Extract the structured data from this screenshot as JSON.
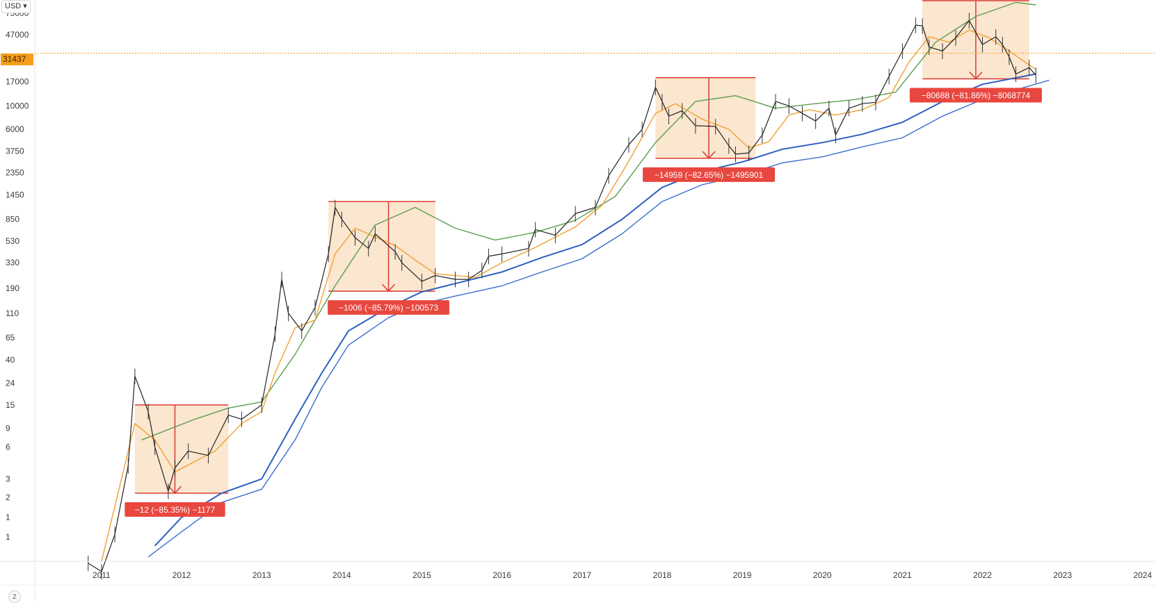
{
  "toolbar": {
    "currency_label": "USD",
    "currency_icon": "chevron-down-icon",
    "zoom_label": "Z"
  },
  "current_price": {
    "label": "31437",
    "value": 31437,
    "color": "#f59d1a"
  },
  "chart_data": {
    "type": "line",
    "title": "",
    "xlabel": "",
    "ylabel": "",
    "y_scale": "log",
    "ylim": [
      0.5,
      100000
    ],
    "xlim": [
      "2010-03",
      "2024-03"
    ],
    "grid": false,
    "y_ticks": [
      {
        "value": 75000,
        "label": "75000"
      },
      {
        "value": 47000,
        "label": "47000"
      },
      {
        "value": 17000,
        "label": "17000"
      },
      {
        "value": 10000,
        "label": "10000"
      },
      {
        "value": 6000,
        "label": "6000"
      },
      {
        "value": 3750,
        "label": "3750"
      },
      {
        "value": 2350,
        "label": "2350"
      },
      {
        "value": 1450,
        "label": "1450"
      },
      {
        "value": 850,
        "label": "850"
      },
      {
        "value": 530,
        "label": "530"
      },
      {
        "value": 330,
        "label": "330"
      },
      {
        "value": 190,
        "label": "190"
      },
      {
        "value": 110,
        "label": "110"
      },
      {
        "value": 65,
        "label": "65"
      },
      {
        "value": 40,
        "label": "40"
      },
      {
        "value": 24,
        "label": "24"
      },
      {
        "value": 15,
        "label": "15"
      },
      {
        "value": 9,
        "label": "9"
      },
      {
        "value": 6,
        "label": "6"
      },
      {
        "value": 3,
        "label": "3"
      },
      {
        "value": 2,
        "label": "2"
      },
      {
        "value": 1.3,
        "label": "1"
      },
      {
        "value": 0.85,
        "label": "1"
      }
    ],
    "x_ticks": [
      {
        "value": "2011-01",
        "label": "2011"
      },
      {
        "value": "2012-01",
        "label": "2012"
      },
      {
        "value": "2013-01",
        "label": "2013"
      },
      {
        "value": "2014-01",
        "label": "2014"
      },
      {
        "value": "2015-01",
        "label": "2015"
      },
      {
        "value": "2016-01",
        "label": "2016"
      },
      {
        "value": "2017-01",
        "label": "2017"
      },
      {
        "value": "2018-01",
        "label": "2018"
      },
      {
        "value": "2019-01",
        "label": "2019"
      },
      {
        "value": "2020-01",
        "label": "2020"
      },
      {
        "value": "2021-01",
        "label": "2021"
      },
      {
        "value": "2022-01",
        "label": "2022"
      },
      {
        "value": "2023-01",
        "label": "2023"
      },
      {
        "value": "2024-01",
        "label": "2024"
      }
    ],
    "series": [
      {
        "kind": "price",
        "color": "#222222",
        "points": [
          [
            "2010-11",
            0.48
          ],
          [
            "2011-01",
            0.4
          ],
          [
            "2011-03",
            0.9
          ],
          [
            "2011-05",
            4
          ],
          [
            "2011-06",
            28
          ],
          [
            "2011-08",
            13
          ],
          [
            "2011-09",
            6
          ],
          [
            "2011-11",
            2.3
          ],
          [
            "2011-12",
            3.8
          ],
          [
            "2012-02",
            5.5
          ],
          [
            "2012-05",
            5
          ],
          [
            "2012-08",
            12
          ],
          [
            "2012-10",
            11
          ],
          [
            "2013-01",
            15
          ],
          [
            "2013-03",
            70
          ],
          [
            "2013-04",
            230
          ],
          [
            "2013-05",
            110
          ],
          [
            "2013-07",
            75
          ],
          [
            "2013-09",
            125
          ],
          [
            "2013-11",
            400
          ],
          [
            "2013-12",
            1100
          ],
          [
            "2014-01",
            850
          ],
          [
            "2014-03",
            570
          ],
          [
            "2014-05",
            450
          ],
          [
            "2014-06",
            620
          ],
          [
            "2014-09",
            420
          ],
          [
            "2014-10",
            330
          ],
          [
            "2015-01",
            220
          ],
          [
            "2015-03",
            250
          ],
          [
            "2015-06",
            230
          ],
          [
            "2015-08",
            230
          ],
          [
            "2015-10",
            280
          ],
          [
            "2015-11",
            380
          ],
          [
            "2016-01",
            400
          ],
          [
            "2016-05",
            450
          ],
          [
            "2016-06",
            680
          ],
          [
            "2016-09",
            600
          ],
          [
            "2016-12",
            960
          ],
          [
            "2017-03",
            1100
          ],
          [
            "2017-05",
            2200
          ],
          [
            "2017-08",
            4300
          ],
          [
            "2017-10",
            6000
          ],
          [
            "2017-12",
            15000
          ],
          [
            "2018-01",
            11000
          ],
          [
            "2018-02",
            8000
          ],
          [
            "2018-04",
            9000
          ],
          [
            "2018-06",
            6500
          ],
          [
            "2018-09",
            6400
          ],
          [
            "2018-11",
            4200
          ],
          [
            "2018-12",
            3500
          ],
          [
            "2019-02",
            3600
          ],
          [
            "2019-04",
            5300
          ],
          [
            "2019-06",
            11000
          ],
          [
            "2019-08",
            10000
          ],
          [
            "2019-10",
            8500
          ],
          [
            "2019-12",
            7200
          ],
          [
            "2020-02",
            9500
          ],
          [
            "2020-03",
            5300
          ],
          [
            "2020-05",
            9500
          ],
          [
            "2020-07",
            10500
          ],
          [
            "2020-09",
            10800
          ],
          [
            "2020-11",
            19000
          ],
          [
            "2021-01",
            33000
          ],
          [
            "2021-03",
            58000
          ],
          [
            "2021-04",
            57000
          ],
          [
            "2021-05",
            36000
          ],
          [
            "2021-07",
            33000
          ],
          [
            "2021-09",
            44000
          ],
          [
            "2021-11",
            64000
          ],
          [
            "2022-01",
            38000
          ],
          [
            "2022-03",
            45000
          ],
          [
            "2022-04",
            38000
          ],
          [
            "2022-05",
            29000
          ],
          [
            "2022-06",
            20000
          ],
          [
            "2022-08",
            23000
          ],
          [
            "2022-09",
            19500
          ]
        ]
      },
      {
        "kind": "short_ma",
        "color": "#f0a030",
        "points": [
          [
            "2011-01",
            0.5
          ],
          [
            "2011-06",
            10
          ],
          [
            "2011-09",
            7
          ],
          [
            "2011-12",
            3.5
          ],
          [
            "2012-06",
            5.5
          ],
          [
            "2012-10",
            10
          ],
          [
            "2013-01",
            13
          ],
          [
            "2013-03",
            30
          ],
          [
            "2013-06",
            80
          ],
          [
            "2013-09",
            95
          ],
          [
            "2013-12",
            400
          ],
          [
            "2014-03",
            700
          ],
          [
            "2014-06",
            580
          ],
          [
            "2014-09",
            480
          ],
          [
            "2014-12",
            350
          ],
          [
            "2015-03",
            260
          ],
          [
            "2015-09",
            240
          ],
          [
            "2016-01",
            330
          ],
          [
            "2016-06",
            460
          ],
          [
            "2016-12",
            720
          ],
          [
            "2017-04",
            1150
          ],
          [
            "2017-08",
            3000
          ],
          [
            "2017-12",
            8500
          ],
          [
            "2018-03",
            10500
          ],
          [
            "2018-07",
            7500
          ],
          [
            "2018-11",
            6000
          ],
          [
            "2019-02",
            4000
          ],
          [
            "2019-05",
            4600
          ],
          [
            "2019-08",
            8200
          ],
          [
            "2019-11",
            9200
          ],
          [
            "2020-03",
            8200
          ],
          [
            "2020-07",
            9200
          ],
          [
            "2020-11",
            12000
          ],
          [
            "2021-02",
            26000
          ],
          [
            "2021-05",
            45000
          ],
          [
            "2021-08",
            40000
          ],
          [
            "2021-11",
            52000
          ],
          [
            "2022-02",
            44000
          ],
          [
            "2022-05",
            33000
          ],
          [
            "2022-09",
            22000
          ]
        ]
      },
      {
        "kind": "long_ma",
        "color": "#5a9e4f",
        "points": [
          [
            "2011-07",
            7
          ],
          [
            "2012-03",
            11
          ],
          [
            "2012-08",
            14
          ],
          [
            "2013-01",
            16
          ],
          [
            "2013-06",
            45
          ],
          [
            "2013-12",
            200
          ],
          [
            "2014-06",
            750
          ],
          [
            "2014-12",
            1100
          ],
          [
            "2015-06",
            700
          ],
          [
            "2015-12",
            540
          ],
          [
            "2016-06",
            640
          ],
          [
            "2016-12",
            830
          ],
          [
            "2017-06",
            1400
          ],
          [
            "2017-12",
            4500
          ],
          [
            "2018-06",
            11000
          ],
          [
            "2018-12",
            12500
          ],
          [
            "2019-06",
            9500
          ],
          [
            "2019-12",
            10500
          ],
          [
            "2020-06",
            11500
          ],
          [
            "2020-12",
            13500
          ],
          [
            "2021-06",
            40000
          ],
          [
            "2021-12",
            70000
          ],
          [
            "2022-06",
            95000
          ],
          [
            "2022-09",
            90000
          ]
        ]
      },
      {
        "kind": "support_upper",
        "color": "#2f5fbf",
        "points": [
          [
            "2011-09",
            0.7
          ],
          [
            "2012-01",
            1.3
          ],
          [
            "2012-07",
            2.2
          ],
          [
            "2013-01",
            3
          ],
          [
            "2013-06",
            11
          ],
          [
            "2013-10",
            30
          ],
          [
            "2014-02",
            75
          ],
          [
            "2014-08",
            125
          ],
          [
            "2015-01",
            175
          ],
          [
            "2015-06",
            210
          ],
          [
            "2016-01",
            270
          ],
          [
            "2016-07",
            370
          ],
          [
            "2017-01",
            490
          ],
          [
            "2017-07",
            850
          ],
          [
            "2018-01",
            1700
          ],
          [
            "2018-07",
            2400
          ],
          [
            "2019-01",
            2950
          ],
          [
            "2019-07",
            3900
          ],
          [
            "2020-01",
            4500
          ],
          [
            "2020-07",
            5400
          ],
          [
            "2021-01",
            7000
          ],
          [
            "2021-07",
            11000
          ],
          [
            "2022-01",
            16000
          ],
          [
            "2022-09",
            20000
          ]
        ]
      },
      {
        "kind": "support_lower",
        "color": "#3a6ecf",
        "points": [
          [
            "2011-08",
            0.55
          ],
          [
            "2012-01",
            0.95
          ],
          [
            "2012-07",
            1.8
          ],
          [
            "2013-01",
            2.4
          ],
          [
            "2013-06",
            7
          ],
          [
            "2013-10",
            22
          ],
          [
            "2014-02",
            55
          ],
          [
            "2014-08",
            100
          ],
          [
            "2015-01",
            135
          ],
          [
            "2015-06",
            160
          ],
          [
            "2016-01",
            200
          ],
          [
            "2016-07",
            270
          ],
          [
            "2017-01",
            360
          ],
          [
            "2017-07",
            620
          ],
          [
            "2018-01",
            1250
          ],
          [
            "2018-07",
            1800
          ],
          [
            "2019-01",
            2200
          ],
          [
            "2019-07",
            2900
          ],
          [
            "2020-01",
            3300
          ],
          [
            "2020-07",
            4100
          ],
          [
            "2021-01",
            5000
          ],
          [
            "2021-07",
            8000
          ],
          [
            "2022-01",
            11500
          ],
          [
            "2022-11",
            17500
          ]
        ]
      }
    ],
    "drawdowns": [
      {
        "start": "2011-06",
        "end": "2012-08",
        "high": 15,
        "low": 2.2,
        "arrow_x": "2011-12",
        "label": "−12 (−85.35%) −1177"
      },
      {
        "start": "2013-11",
        "end": "2015-03",
        "high": 1250,
        "low": 178,
        "arrow_x": "2014-08",
        "label": "−1006 (−85.79%) −100573"
      },
      {
        "start": "2017-12",
        "end": "2019-03",
        "high": 18500,
        "low": 3200,
        "arrow_x": "2018-08",
        "label": "−14959 (−82.65%) −1495901"
      },
      {
        "start": "2021-04",
        "end": "2022-08",
        "high": 98500,
        "low": 18000,
        "arrow_x": "2021-12",
        "label": "−80688 (−81.86%) −8068774"
      }
    ],
    "drawdown_fill": "#fbe3ca",
    "drawdown_line": "#d93a31",
    "badge_color": "#e8473f"
  }
}
